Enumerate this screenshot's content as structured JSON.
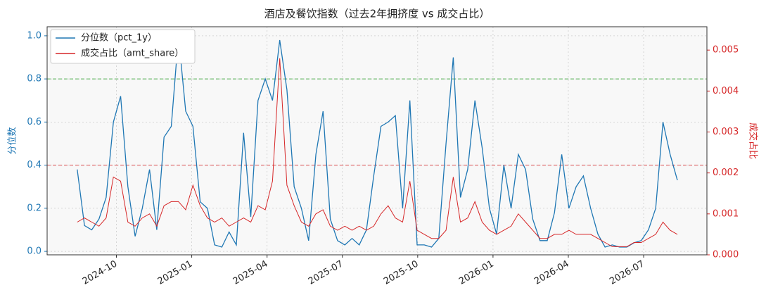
{
  "chart_data": {
    "type": "line",
    "title": "酒店及餐饮指数（过去2年拥挤度 vs 成交占比）",
    "y_label": "分位数",
    "y2_label": "成交占比",
    "x": [
      2024.62,
      2024.644,
      2024.668,
      2024.692,
      2024.716,
      2024.74,
      2024.764,
      2024.788,
      2024.812,
      2024.836,
      2024.86,
      2024.884,
      2024.908,
      2024.932,
      2024.956,
      2024.98,
      2025.004,
      2025.028,
      2025.052,
      2025.076,
      2025.1,
      2025.124,
      2025.148,
      2025.172,
      2025.196,
      2025.22,
      2025.244,
      2025.268,
      2025.292,
      2025.316,
      2025.34,
      2025.364,
      2025.388,
      2025.412,
      2025.436,
      2025.46,
      2025.484,
      2025.508,
      2025.532,
      2025.556,
      2025.58,
      2025.604,
      2025.628,
      2025.652,
      2025.676,
      2025.7,
      2025.724,
      2025.748,
      2025.772,
      2025.796,
      2025.82,
      2025.844,
      2025.868,
      2025.892,
      2025.916,
      2025.94,
      2025.964,
      2025.988,
      2026.012,
      2026.036,
      2026.06,
      2026.084,
      2026.108,
      2026.132,
      2026.156,
      2026.18,
      2026.204,
      2026.228,
      2026.252,
      2026.276,
      2026.3,
      2026.324,
      2026.348,
      2026.372,
      2026.396,
      2026.42,
      2026.444,
      2026.468,
      2026.492,
      2026.516,
      2026.54,
      2026.564,
      2026.588,
      2026.612
    ],
    "series": [
      {
        "name": "分位数（pct_1y）",
        "color": "#1f77b4",
        "axis": "y",
        "values": [
          0.38,
          0.12,
          0.1,
          0.15,
          0.25,
          0.6,
          0.72,
          0.3,
          0.07,
          0.2,
          0.38,
          0.1,
          0.53,
          0.58,
          1.0,
          0.65,
          0.58,
          0.23,
          0.2,
          0.03,
          0.02,
          0.09,
          0.03,
          0.55,
          0.16,
          0.7,
          0.8,
          0.7,
          0.98,
          0.75,
          0.3,
          0.2,
          0.05,
          0.45,
          0.65,
          0.15,
          0.05,
          0.03,
          0.06,
          0.03,
          0.1,
          0.35,
          0.58,
          0.6,
          0.63,
          0.2,
          0.7,
          0.03,
          0.03,
          0.02,
          0.06,
          0.5,
          0.9,
          0.25,
          0.38,
          0.7,
          0.48,
          0.2,
          0.08,
          0.4,
          0.2,
          0.45,
          0.38,
          0.15,
          0.05,
          0.05,
          0.18,
          0.45,
          0.2,
          0.3,
          0.35,
          0.2,
          0.08,
          0.02,
          0.03,
          0.02,
          0.02,
          0.04,
          0.05,
          0.1,
          0.2,
          0.6,
          0.45,
          0.33
        ]
      },
      {
        "name": "成交占比（amt_share）",
        "color": "#d62728",
        "axis": "y2",
        "values": [
          0.0008,
          0.0009,
          0.0008,
          0.0007,
          0.0009,
          0.0019,
          0.0018,
          0.0008,
          0.0007,
          0.0009,
          0.001,
          0.0007,
          0.0012,
          0.0013,
          0.0013,
          0.0011,
          0.0017,
          0.0012,
          0.0009,
          0.0008,
          0.0009,
          0.0007,
          0.0008,
          0.0009,
          0.0008,
          0.0012,
          0.0011,
          0.0018,
          0.0048,
          0.0017,
          0.0012,
          0.0008,
          0.0007,
          0.001,
          0.0011,
          0.0007,
          0.0006,
          0.0007,
          0.0006,
          0.0007,
          0.0006,
          0.0007,
          0.001,
          0.0012,
          0.0009,
          0.0008,
          0.0018,
          0.0006,
          0.0005,
          0.0004,
          0.0004,
          0.0006,
          0.0019,
          0.0008,
          0.0009,
          0.0013,
          0.0008,
          0.0006,
          0.0005,
          0.0006,
          0.0007,
          0.001,
          0.0008,
          0.0006,
          0.0004,
          0.0004,
          0.0005,
          0.0005,
          0.0006,
          0.0005,
          0.0005,
          0.0005,
          0.0004,
          0.0003,
          0.0002,
          0.0002,
          0.0002,
          0.0003,
          0.0003,
          0.0004,
          0.0005,
          0.0008,
          0.0006,
          0.0005
        ]
      }
    ],
    "xlim": [
      2024.52,
      2026.71
    ],
    "xticks": [
      {
        "value": 2024.75,
        "label": "2024-10"
      },
      {
        "value": 2025.0,
        "label": "2025-01"
      },
      {
        "value": 2025.25,
        "label": "2025-04"
      },
      {
        "value": 2025.5,
        "label": "2025-07"
      },
      {
        "value": 2025.75,
        "label": "2025-10"
      },
      {
        "value": 2026.0,
        "label": "2026-01"
      },
      {
        "value": 2026.25,
        "label": "2026-04"
      },
      {
        "value": 2026.5,
        "label": "2026-07"
      }
    ],
    "ylim": [
      -0.016,
      1.042
    ],
    "yticks": [
      {
        "value": 0,
        "label": "0.0"
      },
      0.2,
      0.4,
      0.6,
      0.8,
      {
        "value": 1,
        "label": "1.0"
      }
    ],
    "y2lim": [
      0,
      0.00557
    ],
    "y2ticks": [
      {
        "value": 0,
        "label": "0.000"
      },
      0.001,
      0.002,
      0.003,
      0.004,
      0.005
    ],
    "hlines": [
      {
        "value": 0.8,
        "color": "#2ca02c"
      },
      {
        "value": 0.4,
        "color": "#d62728"
      }
    ],
    "grid": true,
    "legend": "upper left"
  }
}
